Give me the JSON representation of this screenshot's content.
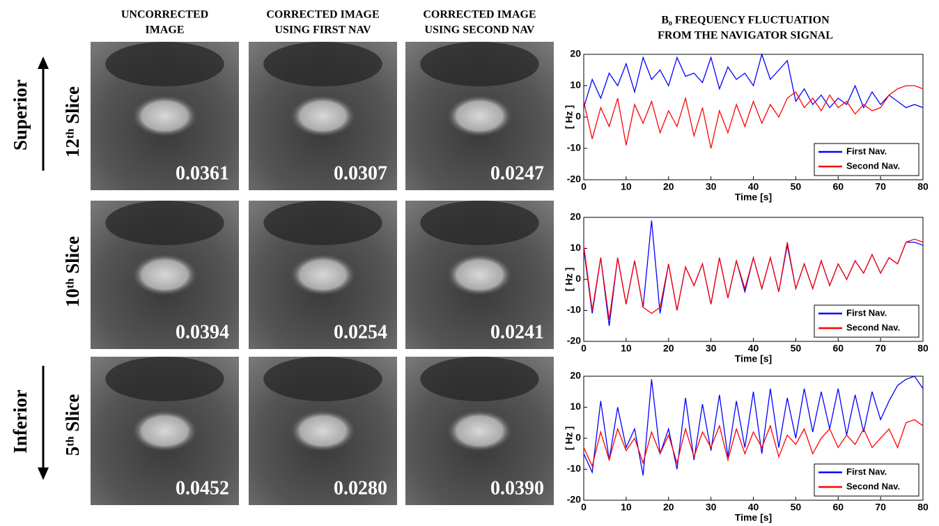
{
  "figure": {
    "column_headers": [
      [
        "UNCORRECTED",
        "IMAGE"
      ],
      [
        "CORRECTED IMAGE",
        "USING FIRST NAV"
      ],
      [
        "CORRECTED IMAGE",
        "USING SECOND NAV"
      ]
    ],
    "directions": [
      "Superior",
      "Inferior"
    ],
    "row_labels": [
      "12ᵗʰ Slice",
      "10ᵗʰ Slice",
      "5ᵗʰ Slice"
    ],
    "image_values": [
      [
        "0.0361",
        "0.0307",
        "0.0247"
      ],
      [
        "0.0394",
        "0.0254",
        "0.0241"
      ],
      [
        "0.0452",
        "0.0280",
        "0.0390"
      ]
    ]
  },
  "chart_data": [
    {
      "type": "line",
      "title": [
        "B₀ FREQUENCY  FLUCTUATION",
        "FROM THE  NAVIGATOR SIGNAL"
      ],
      "xlabel": "Time [s]",
      "ylabel": "[ Hz ]",
      "x": [
        0,
        2,
        4,
        6,
        8,
        10,
        12,
        14,
        16,
        18,
        20,
        22,
        24,
        26,
        28,
        30,
        32,
        34,
        36,
        38,
        40,
        42,
        44,
        46,
        48,
        50,
        52,
        54,
        56,
        58,
        60,
        62,
        64,
        66,
        68,
        70,
        72,
        74,
        76,
        78,
        80
      ],
      "series": [
        {
          "name": "First Nav.",
          "color": "#0000ff",
          "values": [
            3,
            12,
            6,
            14,
            10,
            17,
            8,
            19,
            12,
            15,
            10,
            19,
            13,
            14,
            11,
            19,
            9,
            16,
            12,
            14,
            10,
            20,
            12,
            15,
            18,
            5,
            9,
            4,
            7,
            3,
            6,
            4,
            10,
            3,
            8,
            4,
            7,
            5,
            3,
            4,
            3
          ]
        },
        {
          "name": "Second Nav.",
          "color": "#ff0000",
          "values": [
            5,
            -7,
            3,
            -3,
            6,
            -9,
            4,
            -2,
            5,
            -5,
            2,
            -3,
            6,
            -6,
            3,
            -10,
            2,
            -5,
            4,
            -3,
            5,
            -2,
            4,
            0,
            6,
            8,
            3,
            6,
            2,
            7,
            3,
            5,
            1,
            4,
            2,
            3,
            7,
            9,
            10,
            10,
            9
          ]
        }
      ],
      "xlim": [
        0,
        80
      ],
      "xticks": [
        0,
        10,
        20,
        30,
        40,
        50,
        60,
        70,
        80
      ],
      "ylim": [
        -20,
        20
      ],
      "yticks": [
        -20,
        -10,
        0,
        10,
        20
      ],
      "legend": "lower right"
    },
    {
      "type": "line",
      "xlabel": "Time [s]",
      "ylabel": "[ Hz ]",
      "x": [
        0,
        2,
        4,
        6,
        8,
        10,
        12,
        14,
        16,
        18,
        20,
        22,
        24,
        26,
        28,
        30,
        32,
        34,
        36,
        38,
        40,
        42,
        44,
        46,
        48,
        50,
        52,
        54,
        56,
        58,
        60,
        62,
        64,
        66,
        68,
        70,
        72,
        74,
        76,
        78,
        80
      ],
      "series": [
        {
          "name": "First Nav.",
          "color": "#0000ff",
          "values": [
            10,
            -11,
            7,
            -15,
            7,
            -8,
            6,
            -9,
            19,
            -11,
            5,
            -10,
            4,
            -2,
            5,
            -8,
            7,
            -6,
            6,
            -4,
            7,
            -3,
            7,
            -4,
            11,
            -3,
            5,
            -3,
            6,
            -2,
            5,
            0,
            6,
            2,
            8,
            2,
            7,
            5,
            12,
            12,
            11
          ]
        },
        {
          "name": "Second Nav.",
          "color": "#ff0000",
          "values": [
            11,
            -10,
            7,
            -13,
            7,
            -8,
            6,
            -9,
            -11,
            -9,
            5,
            -10,
            4,
            -2,
            5,
            -8,
            7,
            -6,
            6,
            -3,
            7,
            -3,
            7,
            -4,
            12,
            -3,
            5,
            -3,
            6,
            -2,
            5,
            0,
            6,
            2,
            8,
            2,
            7,
            5,
            12,
            13,
            12
          ]
        }
      ],
      "xlim": [
        0,
        80
      ],
      "xticks": [
        0,
        10,
        20,
        30,
        40,
        50,
        60,
        70,
        80
      ],
      "ylim": [
        -20,
        20
      ],
      "yticks": [
        -20,
        -10,
        0,
        10,
        20
      ],
      "legend": "lower right"
    },
    {
      "type": "line",
      "xlabel": "Time [s]",
      "ylabel": "[ Hz ]",
      "x": [
        0,
        2,
        4,
        6,
        8,
        10,
        12,
        14,
        16,
        18,
        20,
        22,
        24,
        26,
        28,
        30,
        32,
        34,
        36,
        38,
        40,
        42,
        44,
        46,
        48,
        50,
        52,
        54,
        56,
        58,
        60,
        62,
        64,
        66,
        68,
        70,
        72,
        74,
        76,
        78,
        80
      ],
      "series": [
        {
          "name": "First Nav.",
          "color": "#0000ff",
          "values": [
            -5,
            -11,
            12,
            -7,
            10,
            -3,
            3,
            -12,
            19,
            -5,
            3,
            -10,
            13,
            -7,
            11,
            -4,
            14,
            -6,
            12,
            -3,
            15,
            -5,
            16,
            -3,
            13,
            0,
            16,
            2,
            15,
            3,
            16,
            1,
            14,
            2,
            15,
            6,
            12,
            17,
            19,
            20,
            16
          ]
        },
        {
          "name": "Second Nav.",
          "color": "#ff0000",
          "values": [
            -3,
            -9,
            2,
            -7,
            3,
            -4,
            0,
            -8,
            2,
            -5,
            1,
            -8,
            3,
            -6,
            2,
            -3,
            4,
            -7,
            3,
            -5,
            2,
            -3,
            4,
            -6,
            1,
            -2,
            3,
            -5,
            0,
            3,
            -3,
            1,
            -2,
            3,
            -3,
            0,
            3,
            -3,
            5,
            6,
            4
          ]
        }
      ],
      "xlim": [
        0,
        80
      ],
      "xticks": [
        0,
        10,
        20,
        30,
        40,
        50,
        60,
        70,
        80
      ],
      "ylim": [
        -20,
        20
      ],
      "yticks": [
        -20,
        -10,
        0,
        10,
        20
      ],
      "legend": "lower right"
    }
  ]
}
